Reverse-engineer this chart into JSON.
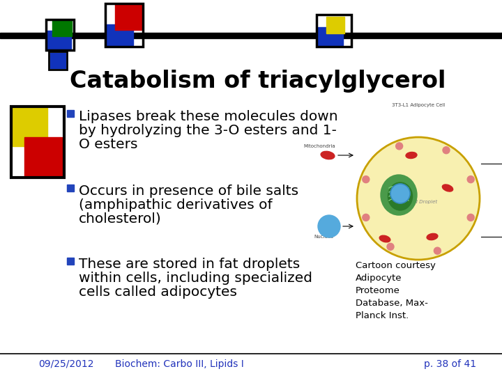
{
  "title": "Catabolism of triacylglycerol",
  "bullet1": "Lipases break these molecules down\nby hydrolyzing the 3-O esters and 1-\nO esters",
  "bullet2": "Occurs in presence of bile salts\n(amphipathic derivatives of\ncholesterol)",
  "bullet3": "These are stored in fat droplets\nwithin cells, including specialized\ncells called adipocytes",
  "caption": "Cartoon courtesy\nAdipocyte\nProteome\nDatabase, Max-\nPlanck Inst.",
  "footer_date": "09/25/2012",
  "footer_title": "Biochem: Carbo III, Lipids I",
  "footer_page": "p. 38 of 41",
  "bg_color": "#ffffff",
  "text_color": "#000000",
  "footer_color": "#2233bb",
  "bullet_color": "#2244bb",
  "sq_blue": "#1133bb",
  "sq_red": "#cc0000",
  "sq_green": "#007700",
  "sq_yellow": "#ddcc00"
}
